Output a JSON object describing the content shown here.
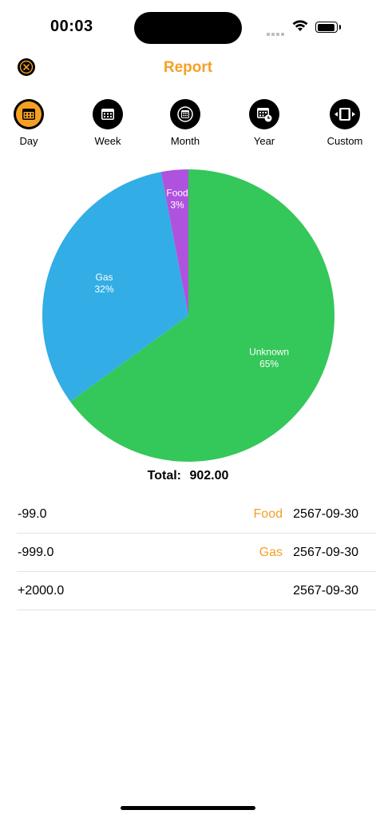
{
  "status_bar": {
    "time": "00:03"
  },
  "header": {
    "title": "Report"
  },
  "periods": [
    {
      "label": "Day",
      "icon": "calendar-day-icon",
      "active": true
    },
    {
      "label": "Week",
      "icon": "calendar-week-icon",
      "active": false
    },
    {
      "label": "Month",
      "icon": "calendar-month-icon",
      "active": false
    },
    {
      "label": "Year",
      "icon": "calendar-year-icon",
      "active": false
    },
    {
      "label": "Custom",
      "icon": "custom-range-icon",
      "active": false
    }
  ],
  "chart_data": {
    "type": "pie",
    "slices": [
      {
        "name": "Unknown",
        "percent": 65,
        "label": "65%",
        "color": "#34C759"
      },
      {
        "name": "Gas",
        "percent": 32,
        "label": "32%",
        "color": "#32ADE6"
      },
      {
        "name": "Food",
        "percent": 3,
        "label": "3%",
        "color": "#AF52DE"
      }
    ]
  },
  "summary": {
    "total_label": "Total:",
    "total_value": "902.00"
  },
  "transactions": [
    {
      "amount": "-99.0",
      "category": "Food",
      "date": "2567-09-30"
    },
    {
      "amount": "-999.0",
      "category": "Gas",
      "date": "2567-09-30"
    },
    {
      "amount": "+2000.0",
      "category": "",
      "date": "2567-09-30"
    }
  ],
  "colors": {
    "accent": "#F5A025"
  }
}
